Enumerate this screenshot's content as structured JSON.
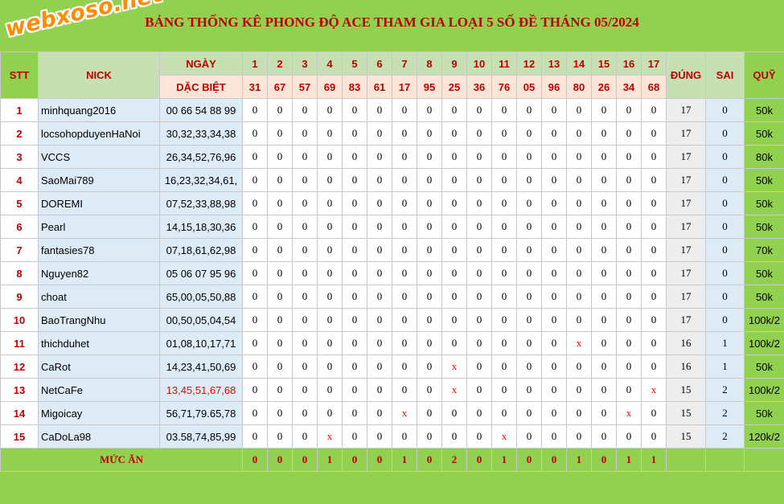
{
  "title": "BẢNG THỐNG KÊ PHONG ĐỘ ACE THAM GIA LOẠI 5 SỐ ĐỀ THÁNG 05/2024",
  "logo_text": "webxoso.net",
  "headers": {
    "stt": "STT",
    "nick": "NICK",
    "ngay": "NGÀY",
    "dac_biet": "DẶC BIỆT",
    "dung": "ĐÚNG",
    "sai": "SAI",
    "quy": "QUỸ"
  },
  "days": [
    "1",
    "2",
    "3",
    "4",
    "5",
    "6",
    "7",
    "8",
    "9",
    "10",
    "11",
    "12",
    "13",
    "14",
    "15",
    "16",
    "17"
  ],
  "specials": [
    "31",
    "67",
    "57",
    "69",
    "83",
    "61",
    "17",
    "95",
    "25",
    "36",
    "76",
    "05",
    "96",
    "80",
    "26",
    "34",
    "68"
  ],
  "rows": [
    {
      "stt": "1",
      "nick": "minhquang2016",
      "numbers": "00 66 54 88 99",
      "cells": [
        "0",
        "0",
        "0",
        "0",
        "0",
        "0",
        "0",
        "0",
        "0",
        "0",
        "0",
        "0",
        "0",
        "0",
        "0",
        "0",
        "0"
      ],
      "dung": "17",
      "sai": "0",
      "quy": "50k"
    },
    {
      "stt": "2",
      "nick": "locsohopduyenHaNoi",
      "numbers": "30,32,33,34,38",
      "cells": [
        "0",
        "0",
        "0",
        "0",
        "0",
        "0",
        "0",
        "0",
        "0",
        "0",
        "0",
        "0",
        "0",
        "0",
        "0",
        "0",
        "0"
      ],
      "dung": "17",
      "sai": "0",
      "quy": "50k"
    },
    {
      "stt": "3",
      "nick": "VCCS",
      "numbers": "26,34,52,76,96",
      "cells": [
        "0",
        "0",
        "0",
        "0",
        "0",
        "0",
        "0",
        "0",
        "0",
        "0",
        "0",
        "0",
        "0",
        "0",
        "0",
        "0",
        "0"
      ],
      "dung": "17",
      "sai": "0",
      "quy": "80k"
    },
    {
      "stt": "4",
      "nick": "SaoMai789",
      "numbers": "16,23,32,34,61,",
      "cells": [
        "0",
        "0",
        "0",
        "0",
        "0",
        "0",
        "0",
        "0",
        "0",
        "0",
        "0",
        "0",
        "0",
        "0",
        "0",
        "0",
        "0"
      ],
      "dung": "17",
      "sai": "0",
      "quy": "50k"
    },
    {
      "stt": "5",
      "nick": "DOREMI",
      "numbers": "07,52,33,88,98",
      "cells": [
        "0",
        "0",
        "0",
        "0",
        "0",
        "0",
        "0",
        "0",
        "0",
        "0",
        "0",
        "0",
        "0",
        "0",
        "0",
        "0",
        "0"
      ],
      "dung": "17",
      "sai": "0",
      "quy": "50k"
    },
    {
      "stt": "6",
      "nick": "Pearl",
      "numbers": "14,15,18,30,36",
      "cells": [
        "0",
        "0",
        "0",
        "0",
        "0",
        "0",
        "0",
        "0",
        "0",
        "0",
        "0",
        "0",
        "0",
        "0",
        "0",
        "0",
        "0"
      ],
      "dung": "17",
      "sai": "0",
      "quy": "50k"
    },
    {
      "stt": "7",
      "nick": "fantasies78",
      "numbers": "07,18,61,62,98",
      "cells": [
        "0",
        "0",
        "0",
        "0",
        "0",
        "0",
        "0",
        "0",
        "0",
        "0",
        "0",
        "0",
        "0",
        "0",
        "0",
        "0",
        "0"
      ],
      "dung": "17",
      "sai": "0",
      "quy": "70k"
    },
    {
      "stt": "8",
      "nick": "Nguyen82",
      "numbers": "05 06 07 95 96",
      "cells": [
        "0",
        "0",
        "0",
        "0",
        "0",
        "0",
        "0",
        "0",
        "0",
        "0",
        "0",
        "0",
        "0",
        "0",
        "0",
        "0",
        "0"
      ],
      "dung": "17",
      "sai": "0",
      "quy": "50k"
    },
    {
      "stt": "9",
      "nick": "choat",
      "numbers": "65,00,05,50,88",
      "cells": [
        "0",
        "0",
        "0",
        "0",
        "0",
        "0",
        "0",
        "0",
        "0",
        "0",
        "0",
        "0",
        "0",
        "0",
        "0",
        "0",
        "0"
      ],
      "dung": "17",
      "sai": "0",
      "quy": "50k"
    },
    {
      "stt": "10",
      "nick": "BaoTrangNhu",
      "numbers": "00,50,05,04,54",
      "cells": [
        "0",
        "0",
        "0",
        "0",
        "0",
        "0",
        "0",
        "0",
        "0",
        "0",
        "0",
        "0",
        "0",
        "0",
        "0",
        "0",
        "0"
      ],
      "dung": "17",
      "sai": "0",
      "quy": "100k/2"
    },
    {
      "stt": "11",
      "nick": "thichduhet",
      "numbers": "01,08,10,17,71",
      "cells": [
        "0",
        "0",
        "0",
        "0",
        "0",
        "0",
        "0",
        "0",
        "0",
        "0",
        "0",
        "0",
        "0",
        "x",
        "0",
        "0",
        "0"
      ],
      "dung": "16",
      "sai": "1",
      "quy": "100k/2"
    },
    {
      "stt": "12",
      "nick": "CaRot",
      "numbers": "14,23,41,50,69",
      "cells": [
        "0",
        "0",
        "0",
        "0",
        "0",
        "0",
        "0",
        "0",
        "x",
        "0",
        "0",
        "0",
        "0",
        "0",
        "0",
        "0",
        "0"
      ],
      "dung": "16",
      "sai": "1",
      "quy": "50k"
    },
    {
      "stt": "13",
      "nick": "NetCaFe",
      "numbers": "13,45,51,67,68",
      "numbers_red": true,
      "cells": [
        "0",
        "0",
        "0",
        "0",
        "0",
        "0",
        "0",
        "0",
        "x",
        "0",
        "0",
        "0",
        "0",
        "0",
        "0",
        "0",
        "x"
      ],
      "dung": "15",
      "sai": "2",
      "quy": "100k/2"
    },
    {
      "stt": "14",
      "nick": "Migoicay",
      "numbers": "56,71,79.65,78",
      "cells": [
        "0",
        "0",
        "0",
        "0",
        "0",
        "0",
        "x",
        "0",
        "0",
        "0",
        "0",
        "0",
        "0",
        "0",
        "0",
        "x",
        "0"
      ],
      "dung": "15",
      "sai": "2",
      "quy": "50k"
    },
    {
      "stt": "15",
      "nick": "CaDoLa98",
      "numbers": "03.58,74,85,99",
      "cells": [
        "0",
        "0",
        "0",
        "x",
        "0",
        "0",
        "0",
        "0",
        "0",
        "0",
        "x",
        "0",
        "0",
        "0",
        "0",
        "0",
        "0"
      ],
      "dung": "15",
      "sai": "2",
      "quy": "120k/2"
    }
  ],
  "footer": {
    "label": "MỨC ĂN",
    "values": [
      "0",
      "0",
      "0",
      "1",
      "0",
      "0",
      "1",
      "0",
      "2",
      "0",
      "1",
      "0",
      "0",
      "1",
      "0",
      "1",
      "1"
    ]
  }
}
